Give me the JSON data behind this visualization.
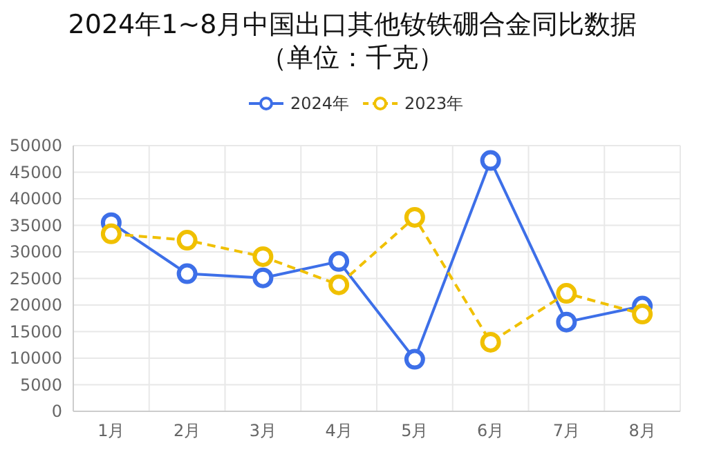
{
  "chart_data": {
    "type": "line",
    "title": "2024年1~8月中国出口其他钕铁硼合金同比数据（单位：千克）",
    "categories": [
      "1月",
      "2月",
      "3月",
      "4月",
      "5月",
      "6月",
      "7月",
      "8月"
    ],
    "series": [
      {
        "name": "2024年",
        "color": "#3d6fe8",
        "line_style": "solid",
        "values": [
          35500,
          25900,
          25100,
          28200,
          9800,
          47200,
          16800,
          19800
        ]
      },
      {
        "name": "2023年",
        "color": "#f0c000",
        "line_style": "dashed",
        "values": [
          33400,
          32200,
          29100,
          23800,
          36500,
          13000,
          22200,
          18300
        ]
      }
    ],
    "ylim": [
      0,
      50000
    ],
    "yticks": [
      0,
      5000,
      10000,
      15000,
      20000,
      25000,
      30000,
      35000,
      40000,
      45000,
      50000
    ],
    "grid": true,
    "legend": "top",
    "marker": "circle"
  }
}
